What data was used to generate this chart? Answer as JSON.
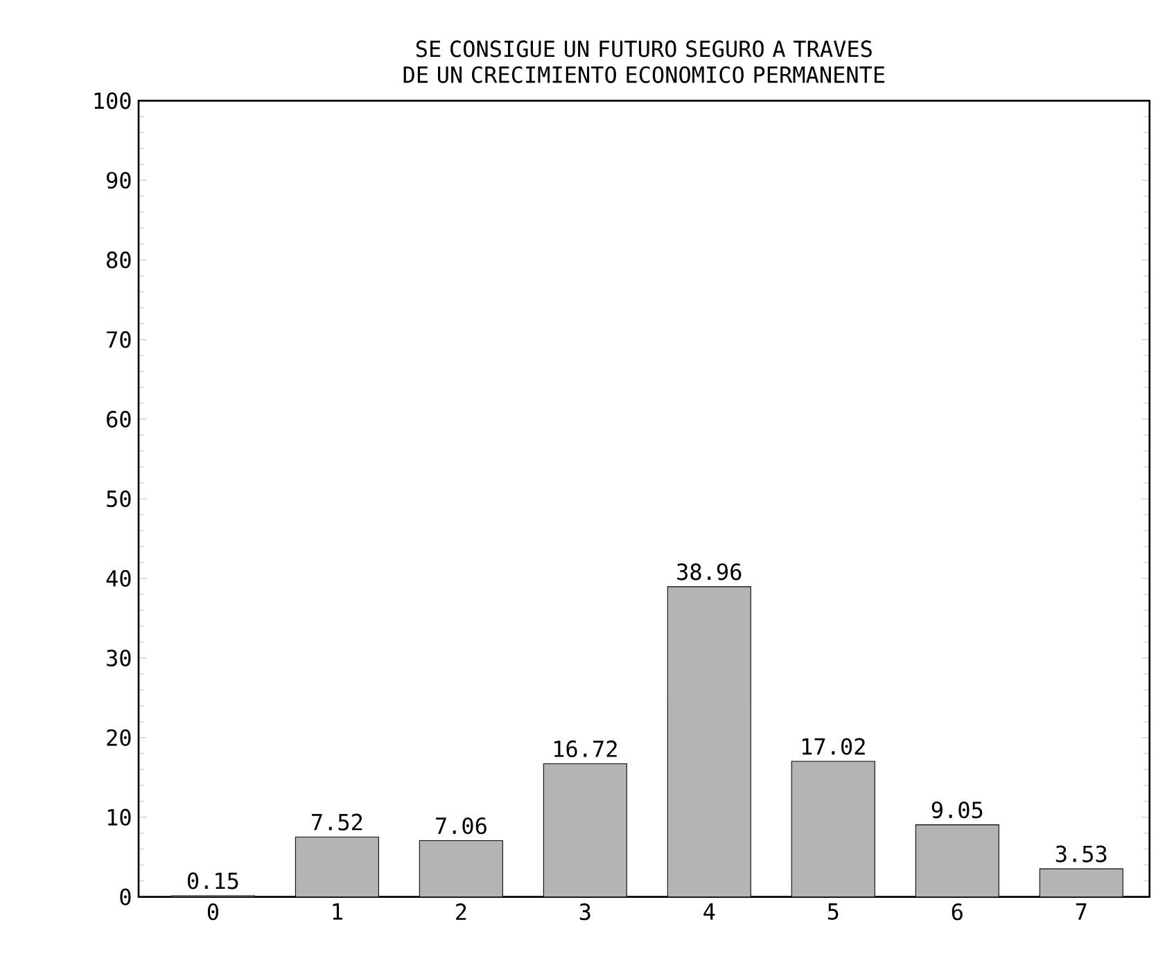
{
  "chart_data": {
    "type": "bar",
    "title": "SE CONSIGUE UN FUTURO SEGURO A TRAVES DE UN CRECIMIENTO ECONOMICO PERMANENTE",
    "categories": [
      "0",
      "1",
      "2",
      "3",
      "4",
      "5",
      "6",
      "7"
    ],
    "values": [
      0.15,
      7.52,
      7.06,
      16.72,
      38.96,
      17.02,
      9.05,
      3.53
    ],
    "value_labels": [
      "0.15",
      "7.52",
      "7.06",
      "16.72",
      "38.96",
      "17.02",
      "9.05",
      "3.53"
    ],
    "color": "#b4b4b4",
    "ylim": [
      0,
      100
    ],
    "yticks": [
      0,
      10,
      20,
      30,
      40,
      50,
      60,
      70,
      80,
      90,
      100
    ]
  }
}
